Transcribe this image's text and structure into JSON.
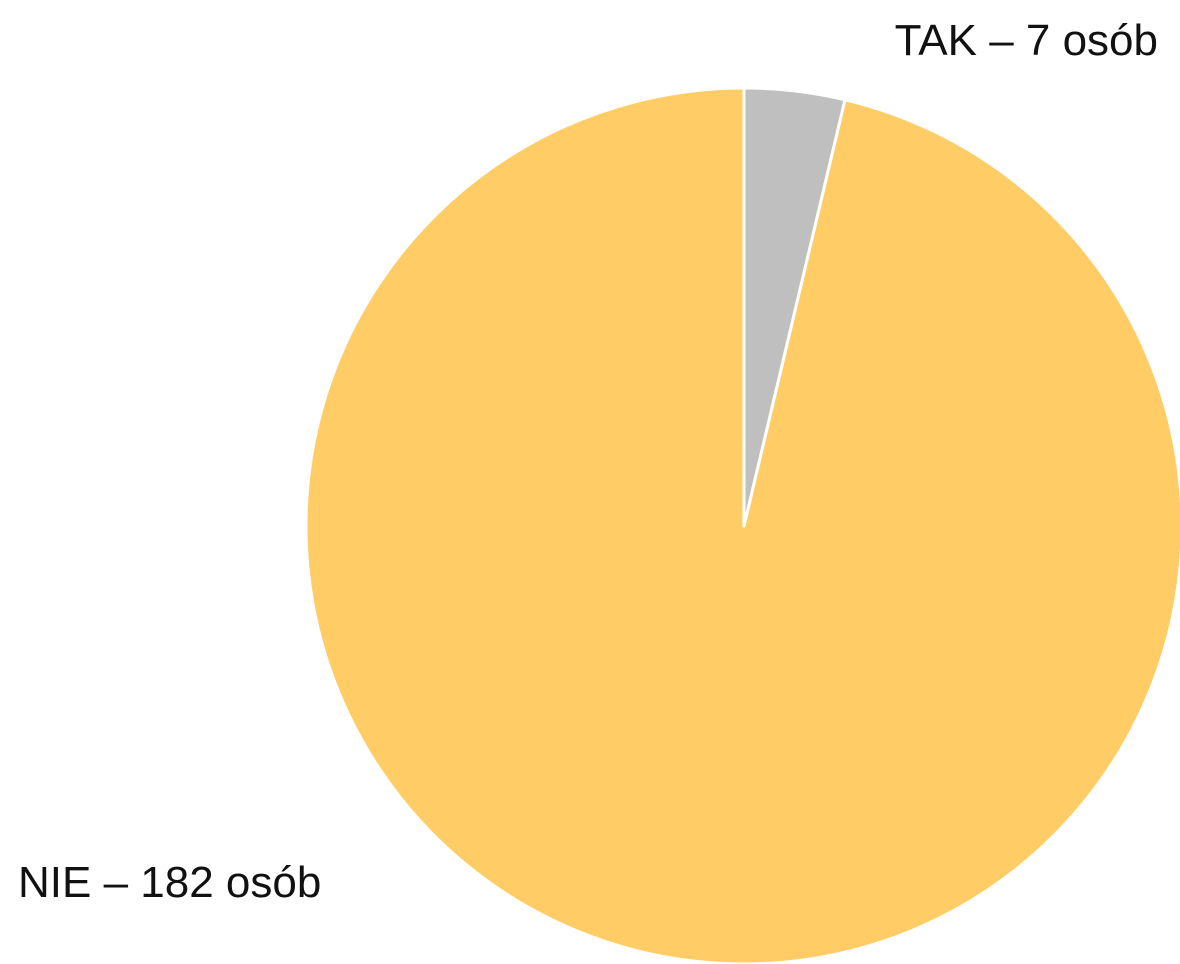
{
  "chart_data": {
    "type": "pie",
    "values": [
      7,
      182
    ],
    "value_labels": [
      "TAK – 7 osób",
      "NIE – 182 osób"
    ],
    "colors": [
      "#bfbfbf",
      "#ffcc66"
    ]
  }
}
